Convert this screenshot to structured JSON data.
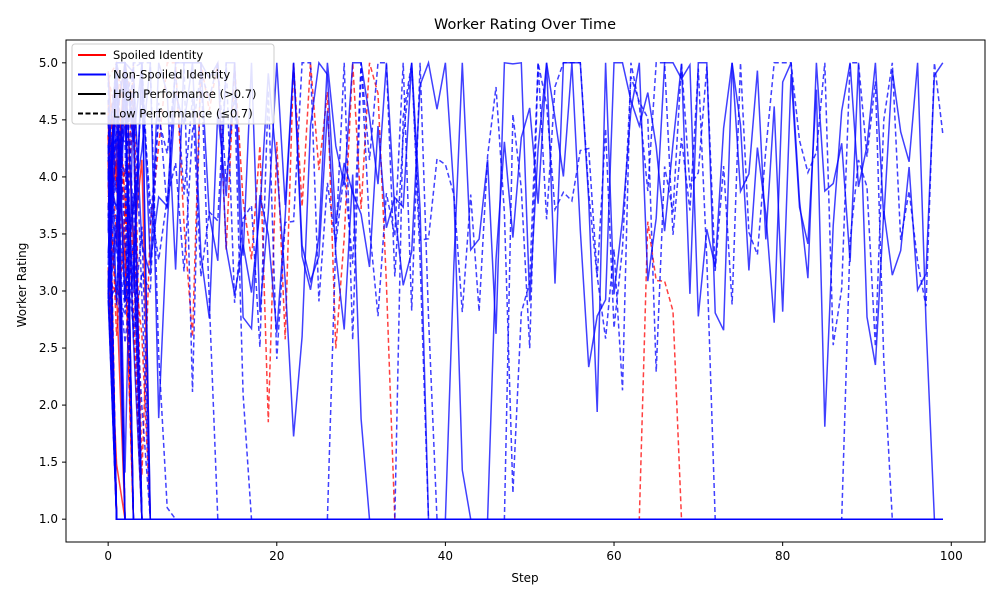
{
  "chart_data": {
    "type": "line",
    "title": "Worker Rating Over Time",
    "xlabel": "Step",
    "ylabel": "Worker Rating",
    "xlim": [
      -5,
      104
    ],
    "ylim": [
      0.8,
      5.2
    ],
    "xticks": [
      0,
      20,
      40,
      60,
      80,
      100
    ],
    "yticks": [
      1.0,
      1.5,
      2.0,
      2.5,
      3.0,
      3.5,
      4.0,
      4.5,
      5.0
    ],
    "steps": [
      0,
      99
    ],
    "rating_floor": 1.0,
    "rating_ceiling": 5.0,
    "grid": false,
    "legend_position": "upper-left",
    "legend": [
      {
        "label": "Spoiled Identity",
        "color": "#ff0000",
        "dash": "solid"
      },
      {
        "label": "Non-Spoiled Identity",
        "color": "#0000ff",
        "dash": "solid"
      },
      {
        "label": "High Performance (>0.7)",
        "color": "#000000",
        "dash": "solid"
      },
      {
        "label": "Low Performance (≤0.7)",
        "color": "#000000",
        "dash": "dashed"
      }
    ],
    "series_groups": [
      {
        "identity": "Spoiled Identity",
        "performance": "High Performance (>0.7)",
        "color": "#ff0000",
        "dash": "solid",
        "count": 12
      },
      {
        "identity": "Spoiled Identity",
        "performance": "Low Performance (≤0.7)",
        "color": "#ff0000",
        "dash": "dashed",
        "count": 14
      },
      {
        "identity": "Non-Spoiled Identity",
        "performance": "High Performance (>0.7)",
        "color": "#0000ff",
        "dash": "solid",
        "count": 20
      },
      {
        "identity": "Non-Spoiled Identity",
        "performance": "Low Performance (≤0.7)",
        "color": "#0000ff",
        "dash": "dashed",
        "count": 20
      }
    ]
  }
}
